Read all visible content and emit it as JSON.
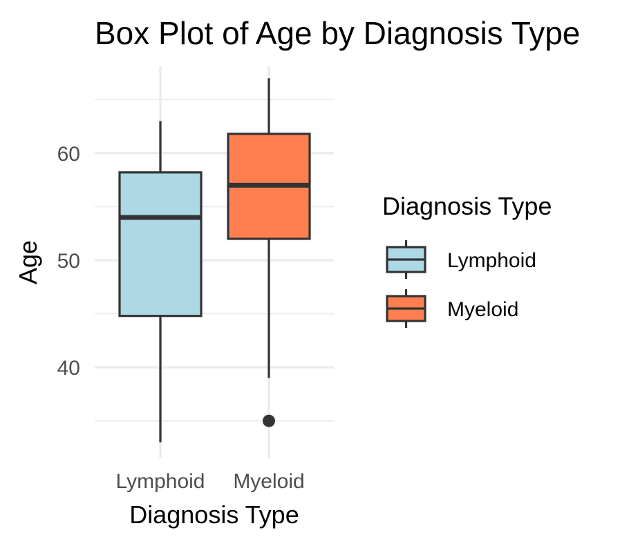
{
  "chart_data": {
    "type": "boxplot",
    "title": "Box Plot of Age by Diagnosis Type",
    "xlabel": "Diagnosis Type",
    "ylabel": "Age",
    "categories": [
      "Lymphoid",
      "Myeloid"
    ],
    "ylim": [
      31.5,
      68.5
    ],
    "yticks": [
      40,
      50,
      60
    ],
    "grid": true,
    "legend": {
      "title": "Diagnosis Type",
      "position": "right",
      "entries": [
        "Lymphoid",
        "Myeloid"
      ]
    },
    "boxes": [
      {
        "category": "Lymphoid",
        "whisker_low": 33,
        "q1": 44.8,
        "median": 54,
        "q3": 58.2,
        "whisker_high": 63,
        "outliers": [],
        "color": "#ADD8E6"
      },
      {
        "category": "Myeloid",
        "whisker_low": 39,
        "q1": 52,
        "median": 57,
        "q3": 61.8,
        "whisker_high": 67,
        "outliers": [
          35
        ],
        "color": "#FF7F50"
      }
    ]
  }
}
